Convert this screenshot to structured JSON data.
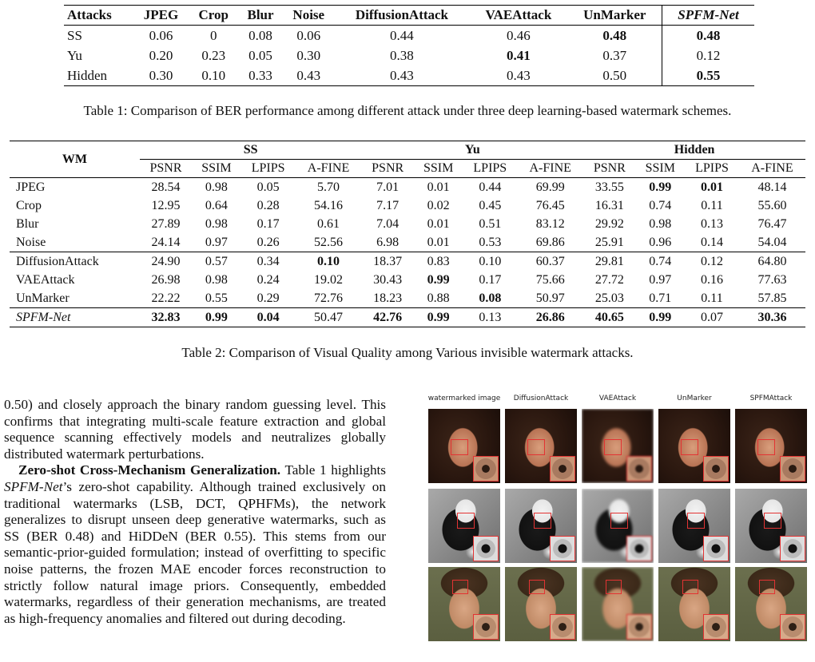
{
  "table1": {
    "headers": [
      "Attacks",
      "JPEG",
      "Crop",
      "Blur",
      "Noise",
      "DiffusionAttack",
      "VAEAttack",
      "UnMarker",
      "SPFM-Net"
    ],
    "rows": [
      {
        "name": "SS",
        "values": [
          "0.06",
          "0",
          "0.08",
          "0.06",
          "0.44",
          "0.46",
          "0.48",
          "0.48"
        ]
      },
      {
        "name": "Yu",
        "values": [
          "0.20",
          "0.23",
          "0.05",
          "0.30",
          "0.38",
          "0.41",
          "0.37",
          "0.12"
        ]
      },
      {
        "name": "Hidden",
        "values": [
          "0.30",
          "0.10",
          "0.33",
          "0.43",
          "0.43",
          "0.43",
          "0.50",
          "0.55"
        ]
      }
    ],
    "caption": "Table 1: Comparison of BER performance among different attack under three deep learning-based watermark schemes."
  },
  "table2": {
    "corner": "WM",
    "groups": [
      "SS",
      "Yu",
      "Hidden"
    ],
    "metrics": [
      "PSNR",
      "SSIM",
      "LPIPS",
      "A-FINE"
    ],
    "rows": [
      {
        "name": "JPEG",
        "values": [
          "28.54",
          "0.98",
          "0.05",
          "5.70",
          "7.01",
          "0.01",
          "0.44",
          "69.99",
          "33.55",
          "0.99",
          "0.01",
          "48.14"
        ]
      },
      {
        "name": "Crop",
        "values": [
          "12.95",
          "0.64",
          "0.28",
          "54.16",
          "7.17",
          "0.02",
          "0.45",
          "76.45",
          "16.31",
          "0.74",
          "0.11",
          "55.60"
        ]
      },
      {
        "name": "Blur",
        "values": [
          "27.89",
          "0.98",
          "0.17",
          "0.61",
          "7.04",
          "0.01",
          "0.51",
          "83.12",
          "29.92",
          "0.98",
          "0.13",
          "76.47"
        ]
      },
      {
        "name": "Noise",
        "values": [
          "24.14",
          "0.97",
          "0.26",
          "52.56",
          "6.98",
          "0.01",
          "0.53",
          "69.86",
          "25.91",
          "0.96",
          "0.14",
          "54.04"
        ]
      },
      {
        "name": "DiffusionAttack",
        "values": [
          "24.90",
          "0.57",
          "0.34",
          "0.10",
          "18.37",
          "0.83",
          "0.10",
          "60.37",
          "29.81",
          "0.74",
          "0.12",
          "64.80"
        ]
      },
      {
        "name": "VAEAttack",
        "values": [
          "26.98",
          "0.98",
          "0.24",
          "19.02",
          "30.43",
          "0.99",
          "0.17",
          "75.66",
          "27.72",
          "0.97",
          "0.16",
          "77.63"
        ]
      },
      {
        "name": "UnMarker",
        "values": [
          "22.22",
          "0.55",
          "0.29",
          "72.76",
          "18.23",
          "0.88",
          "0.08",
          "50.97",
          "25.03",
          "0.71",
          "0.11",
          "57.85"
        ]
      },
      {
        "name": "SPFM-Net",
        "values": [
          "32.83",
          "0.99",
          "0.04",
          "50.47",
          "42.76",
          "0.99",
          "0.13",
          "26.86",
          "40.65",
          "0.99",
          "0.07",
          "30.36"
        ]
      }
    ],
    "caption": "Table 2: Comparison of Visual Quality among Various invisible watermark attacks."
  },
  "body": {
    "p1": "0.50) and closely approach the binary random guessing level. This confirms that integrating multi-scale feature extraction and global sequence scanning effectively models and neutralizes globally distributed watermark perturbations.",
    "p2_heading": "Zero-shot Cross-Mechanism Generalization.",
    "p2_a": " Table 1 highlights ",
    "p2_em": "SPFM-Net",
    "p2_b": "’s zero-shot capability. Although trained exclusively on traditional watermarks (LSB, DCT, QPHFMs), the network generalizes to disrupt unseen deep generative watermarks, such as SS (BER 0.48) and HiDDeN (BER 0.55). This stems from our semantic-prior-guided formulation; instead of overfitting to specific noise patterns, the frozen MAE encoder forces reconstruction to strictly follow natural image priors. Consequently, embedded watermarks, regardless of their generation mechanisms, are treated as high-frequency anomalies and filtered out during decoding."
  },
  "figure": {
    "columns": [
      "watermarked image",
      "DiffusionAttack",
      "VAEAttack",
      "UnMarker",
      "SPFMAttack"
    ],
    "rows": [
      "woman-portrait",
      "dog-portrait",
      "man-portrait"
    ],
    "highlight_color": "#e33333"
  }
}
